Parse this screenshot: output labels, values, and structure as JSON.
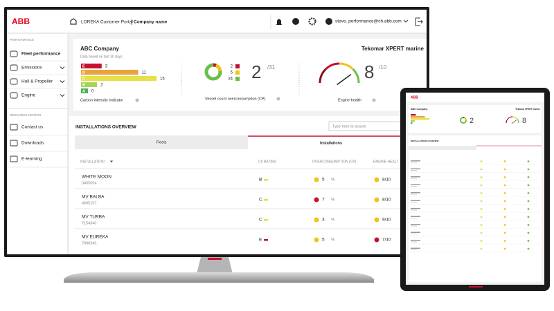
{
  "header": {
    "logo": "ABB",
    "portal": "LOREKA Customer Portal",
    "company": "Company name",
    "user": "steve. performance@ch.abb.com"
  },
  "sidebar": {
    "section1": "PERFORMANCE",
    "items": [
      "Fleet performance",
      "Emissions",
      "Hull & Propeller",
      "Engine"
    ],
    "section2": "RESOURCE CENTER",
    "resources": [
      "Contact us",
      "Downloads",
      "E-learning"
    ]
  },
  "summary": {
    "company": "ABC Company",
    "subtitle": "Data based on last 30 days",
    "brand": "Tekomar XPERT marine",
    "ci": {
      "title": "Carbon intensity indicator",
      "bars": [
        {
          "label": "E",
          "value": 3,
          "color": "#c8102e"
        },
        {
          "label": "D",
          "value": 11,
          "color": "#e8a33d"
        },
        {
          "label": "C",
          "value": 15,
          "color": "#e6e04a"
        },
        {
          "label": "B",
          "value": 2,
          "color": "#a6d45a"
        },
        {
          "label": "A",
          "value": 0,
          "color": "#4caf50"
        }
      ]
    },
    "cp": {
      "title": "Vessel count overconsumption (CP)",
      "segments": [
        {
          "value": 2,
          "color": "#c8102e"
        },
        {
          "value": 5,
          "color": "#f0c419"
        },
        {
          "value": 24,
          "color": "#6abf4b"
        }
      ],
      "value": 2,
      "total": {
        "value": 31,
        "label": "/31"
      }
    },
    "engine": {
      "title": "Engine health",
      "value": 8,
      "max": {
        "value": 10,
        "label": "/10"
      }
    }
  },
  "installations": {
    "title": "INSTALLATIONS OVERVIEW",
    "search": "Type here to search",
    "tabs": [
      "Fleets",
      "Installations"
    ],
    "columns": [
      "INSTALLATION",
      "CII RATING",
      "OVERCONSUMPTION (CP)",
      "ENGINE HEALT"
    ],
    "cp_unit": "%",
    "rows": [
      {
        "name": "WHITE MOON",
        "id": "0405094",
        "cii": "B",
        "cii_color": "#e6e04a",
        "cp": 5,
        "cp_color": "#f0c419",
        "health": "8/10",
        "health_color": "#f0c419"
      },
      {
        "name": "MV BALBA",
        "id": "4695157",
        "cii": "C",
        "cii_color": "#e6e04a",
        "cp": 7,
        "cp_color": "#c8102e",
        "health": "8/10",
        "health_color": "#f0c419"
      },
      {
        "name": "MV TURBA",
        "id": "7154340",
        "cii": "C",
        "cii_color": "#e6e04a",
        "cp": 3,
        "cp_color": "#f0c419",
        "health": "9/10",
        "health_color": "#f0c419"
      },
      {
        "name": "MV EUREKA",
        "id": "7800345",
        "cii": "E",
        "cii_color": "#c8102e",
        "cp": 5,
        "cp_color": "#f0c419",
        "health": "7/10",
        "health_color": "#c8102e"
      }
    ]
  }
}
